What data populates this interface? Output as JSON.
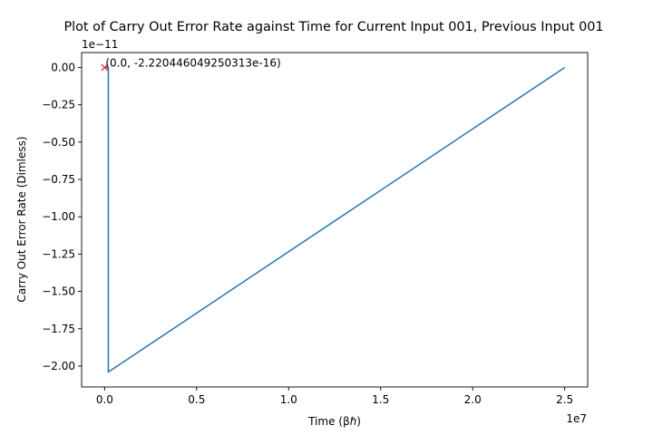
{
  "chart_data": {
    "type": "line",
    "title": "Plot of Carry Out Error Rate against Time for Current Input 001, Previous Input 001",
    "xlabel": "Time (βℏ)",
    "ylabel": "Carry Out Error Rate (Dimless)",
    "x_offset_text": "1e7",
    "y_offset_text": "1e−11",
    "xlim": [
      -1250000,
      26250000
    ],
    "ylim": [
      -2.14e-11,
      1e-12
    ],
    "x_ticks": [
      0,
      5000000,
      10000000,
      15000000,
      20000000,
      25000000
    ],
    "x_tick_labels": [
      "0.0",
      "0.5",
      "1.0",
      "1.5",
      "2.0",
      "2.5"
    ],
    "y_ticks": [
      0,
      -2.5e-12,
      -5e-12,
      -7.5e-12,
      -1e-11,
      -1.25e-11,
      -1.5e-11,
      -1.75e-11,
      -2e-11
    ],
    "y_tick_labels": [
      "0.00",
      "−0.25",
      "−0.50",
      "−0.75",
      "−1.00",
      "−1.25",
      "−1.50",
      "−1.75",
      "−2.00"
    ],
    "grid": false,
    "series": [
      {
        "color": "#1f77b4",
        "x": [
          0,
          100000,
          200000,
          200000,
          25000000
        ],
        "y": [
          0,
          0,
          0,
          -2.04e-11,
          0
        ]
      }
    ],
    "marker": {
      "x": 0,
      "y": -2.220446049250313e-16,
      "symbol": "x",
      "color": "#d62728"
    },
    "annotation": {
      "text": "(0.0, -2.220446049250313e-16)",
      "x": 0,
      "y": -2.220446049250313e-16
    }
  }
}
